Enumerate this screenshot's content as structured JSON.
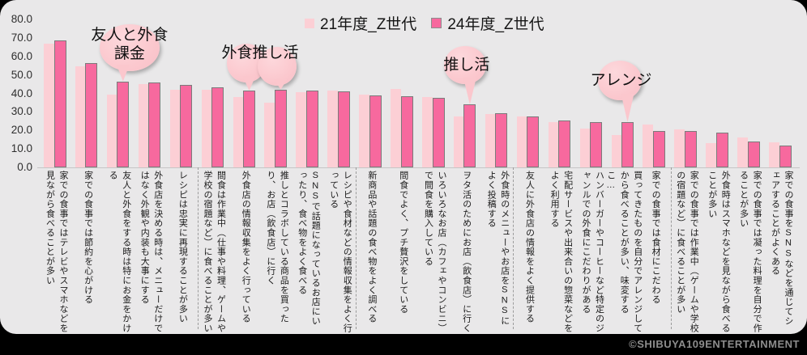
{
  "legend": {
    "items": [
      {
        "label": "21年度_Z世代",
        "color": "#fccfd5"
      },
      {
        "label": "24年度_Z世代",
        "color": "#f7699e"
      }
    ]
  },
  "y_axis": {
    "ticks": [
      "0.0",
      "10.0",
      "20.0",
      "30.0",
      "40.0",
      "50.0",
      "60.0",
      "70.0",
      "80.0"
    ]
  },
  "chart_data": {
    "type": "bar",
    "title": "",
    "xlabel": "",
    "ylabel": "",
    "ylim": [
      0,
      80
    ],
    "y_tick_step": 10,
    "grid": false,
    "legend_position": "top-center",
    "background_color": "#e9e8e9",
    "bar_outline_color": "#7b7b7b",
    "categories": [
      "家での食事ではテレビやスマホなどを見ながら食べることが多い",
      "家での食事では節約を心がける",
      "友人と外食をする時は特にお金をかける",
      "外食店を決める時は、メニューだけではなく外観や内装も大事にする",
      "レシピは忠実に再現することが多い",
      "間食は作業中（仕事や料理、ゲームや学校の宿題など）に食べることが多い",
      "外食店の情報収集をよく行っている",
      "推しとコラボしている商品を買ったり、お店（飲食店）に行く",
      "SNSで話題になっているお店にいったり、食べ物をよく食べる",
      "レシピや食材などの情報収集をよく行っている",
      "新商品や話題の食べ物をよく調べる",
      "間食でよく、プチ贅沢をしている",
      "いろいろなお店（カフェやコンビニ）で間食を購入している",
      "ヲタ活のためにお店（飲食店）に行く",
      "外食時のメニューやお店をSNSによく投稿する",
      "友人に外食店の情報をよく提供する",
      "宅配サービスや出来合いの惣菜などをよく利用する",
      "ハンバーガーやコーヒーなど特定のジャンルでの外食にこだわりがある",
      "買ってきたものを自分でアレンジしてから食べることが多い、味変するこ…",
      "家での食事では食材にこだわる",
      "家での食事では作業中（ゲームや学校の宿題など）に食べることが多い",
      "外食時はスマホなどを見ながら食べることが多い",
      "家での食事では凝った料理を自分で作ることが多い",
      "家での食事をSNSなどを通じてシェアすることがよくある"
    ],
    "series": [
      {
        "name": "21年度_Z世代",
        "color": "#fccfd5",
        "values": [
          67,
          54.5,
          39.5,
          45,
          42,
          42,
          38,
          35,
          40.5,
          41.5,
          39.5,
          42.5,
          38,
          27.5,
          29,
          27.5,
          24.5,
          21,
          17.5,
          23,
          20.5,
          13,
          16,
          13.5
        ]
      },
      {
        "name": "24年度_Z世代",
        "color": "#f7699e",
        "values": [
          68.5,
          56.5,
          46.5,
          46,
          44.5,
          43.5,
          41.5,
          42,
          41.5,
          41,
          39,
          38.5,
          37.5,
          34,
          29.5,
          27.5,
          25.5,
          24.5,
          24.5,
          19.5,
          19.5,
          19,
          14,
          12
        ]
      }
    ],
    "group_separators_after": [
      5,
      10,
      15,
      20
    ]
  },
  "callouts": [
    {
      "label": "友人と外食 課金",
      "lines": [
        "友人と外食",
        "課金"
      ],
      "category_indices": [
        2
      ]
    },
    {
      "label": "外食推し活",
      "lines": [
        "外食推し活"
      ],
      "category_indices": [
        6,
        7
      ]
    },
    {
      "label": "推し活",
      "lines": [
        "推し活"
      ],
      "category_indices": [
        13
      ]
    },
    {
      "label": "アレンジ",
      "lines": [
        "アレンジ"
      ],
      "category_indices": [
        18
      ]
    }
  ],
  "footer": {
    "copyright": "©SHIBUYA109ENTERTAINMENT"
  }
}
